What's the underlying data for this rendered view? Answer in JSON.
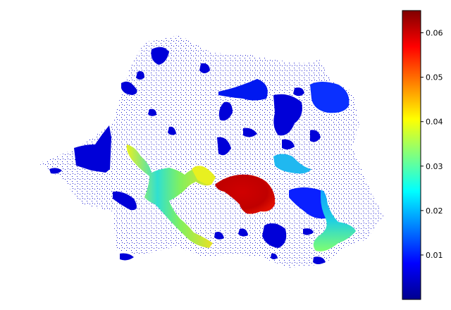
{
  "colorbar": {
    "colormap": "jet",
    "min": 0.0,
    "max": 0.065,
    "ticks": [
      {
        "value": 0.01,
        "label": "0.01"
      },
      {
        "value": 0.02,
        "label": "0.02"
      },
      {
        "value": 0.03,
        "label": "0.03"
      },
      {
        "value": 0.04,
        "label": "0.04"
      },
      {
        "value": 0.05,
        "label": "0.05"
      },
      {
        "value": 0.06,
        "label": "0.06"
      }
    ]
  },
  "colors": {
    "low": "#00008f",
    "high": "#800000",
    "background": "#ffffff"
  }
}
